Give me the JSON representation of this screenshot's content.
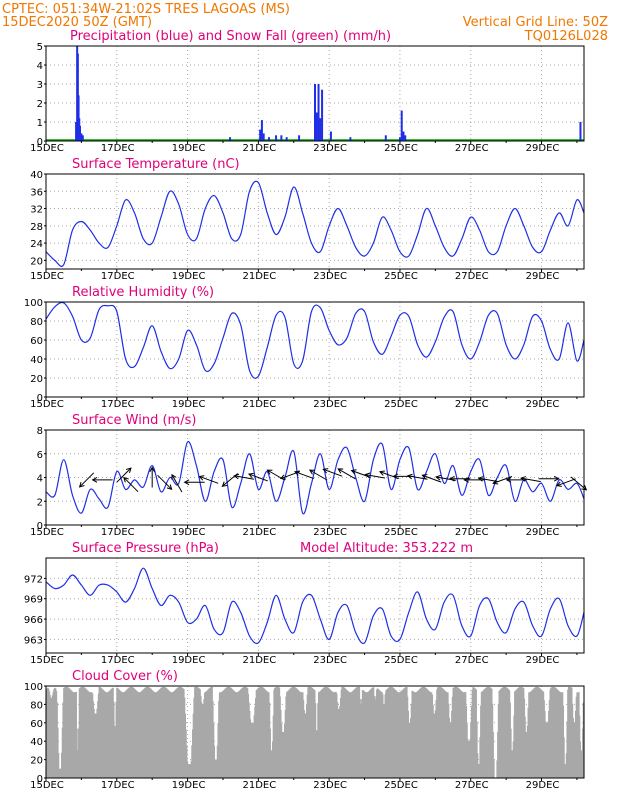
{
  "header": {
    "line1": "CPTEC:  051:34W-21:02S  TRES LAGOAS (MS)",
    "line2": "15DEC2020 50Z (GMT)",
    "right1": "Vertical Grid Line: 50Z",
    "right2": "TQ0126L028"
  },
  "colors": {
    "header": "#f07800",
    "title": "#e0007a",
    "series": "#1f2fe6",
    "snow": "#00a000",
    "cloud": "#a8a8a8",
    "grid": "#aaaaaa"
  },
  "x_tick_labels": [
    "15DEC",
    "17DEC",
    "19DEC",
    "21DEC",
    "23DEC",
    "25DEC",
    "27DEC",
    "29DEC"
  ],
  "x_tick_days": [
    0,
    2,
    4,
    6,
    8,
    10,
    12,
    14
  ],
  "x_range_days": [
    0,
    15.2
  ],
  "chart_data": [
    {
      "type": "bar",
      "id": "precip",
      "title": "Precipitation (blue) and Snow Fall (green) (mm/h)",
      "ylim": [
        0,
        5
      ],
      "yticks": [
        0,
        1,
        2,
        3,
        4,
        5
      ],
      "bars": [
        [
          0.85,
          1.0
        ],
        [
          0.88,
          5.0
        ],
        [
          0.9,
          4.6
        ],
        [
          0.92,
          2.4
        ],
        [
          0.94,
          1.2
        ],
        [
          0.96,
          0.8
        ],
        [
          1.0,
          0.4
        ],
        [
          1.04,
          0.3
        ],
        [
          5.2,
          0.2
        ],
        [
          6.05,
          0.6
        ],
        [
          6.1,
          1.1
        ],
        [
          6.15,
          0.4
        ],
        [
          6.3,
          0.2
        ],
        [
          6.5,
          0.3
        ],
        [
          6.65,
          0.3
        ],
        [
          6.8,
          0.2
        ],
        [
          7.15,
          0.3
        ],
        [
          7.6,
          3.0
        ],
        [
          7.65,
          1.5
        ],
        [
          7.7,
          3.0
        ],
        [
          7.75,
          1.2
        ],
        [
          7.8,
          2.7
        ],
        [
          8.05,
          0.5
        ],
        [
          8.6,
          0.2
        ],
        [
          9.6,
          0.3
        ],
        [
          10.0,
          0.2
        ],
        [
          10.05,
          1.6
        ],
        [
          10.1,
          0.5
        ],
        [
          10.15,
          0.3
        ],
        [
          15.1,
          1.0
        ]
      ],
      "snow_values": "zero"
    },
    {
      "type": "line",
      "id": "temperature",
      "title": "Surface Temperature (nC)",
      "ylim": [
        18,
        40
      ],
      "yticks": [
        20,
        24,
        28,
        32,
        36,
        40
      ],
      "x": [
        0,
        0.25,
        0.5,
        0.75,
        1.0,
        1.25,
        1.5,
        1.75,
        2.0,
        2.25,
        2.5,
        2.75,
        3.0,
        3.25,
        3.5,
        3.75,
        4.0,
        4.25,
        4.5,
        4.75,
        5.0,
        5.25,
        5.5,
        5.75,
        6.0,
        6.25,
        6.5,
        6.75,
        7.0,
        7.25,
        7.5,
        7.75,
        8.0,
        8.25,
        8.5,
        8.75,
        9.0,
        9.25,
        9.5,
        9.75,
        10.0,
        10.25,
        10.5,
        10.75,
        11.0,
        11.25,
        11.5,
        11.75,
        12.0,
        12.25,
        12.5,
        12.75,
        13.0,
        13.25,
        13.5,
        13.75,
        14.0,
        14.25,
        14.5,
        14.75,
        15.0,
        15.2
      ],
      "y": [
        22,
        20,
        19,
        27,
        29,
        27,
        24,
        23,
        28,
        34,
        31,
        25,
        24,
        30,
        36,
        33,
        26,
        25,
        32,
        35,
        31,
        25,
        26,
        36,
        38,
        31,
        26,
        30,
        37,
        31,
        24,
        22,
        28,
        32,
        28,
        23,
        21,
        24,
        30,
        27,
        22,
        21,
        26,
        32,
        28,
        23,
        21,
        25,
        30,
        27,
        22,
        22,
        28,
        32,
        28,
        23,
        22,
        27,
        31,
        28,
        34,
        31
      ]
    },
    {
      "type": "line",
      "id": "humidity",
      "title": "Relative Humidity (%)",
      "ylim": [
        0,
        100
      ],
      "yticks": [
        0,
        20,
        40,
        60,
        80,
        100
      ],
      "x": [
        0,
        0.25,
        0.5,
        0.75,
        1.0,
        1.25,
        1.5,
        1.75,
        2.0,
        2.25,
        2.5,
        2.75,
        3.0,
        3.25,
        3.5,
        3.75,
        4.0,
        4.25,
        4.5,
        4.75,
        5.0,
        5.25,
        5.5,
        5.75,
        6.0,
        6.25,
        6.5,
        6.75,
        7.0,
        7.25,
        7.5,
        7.75,
        8.0,
        8.25,
        8.5,
        8.75,
        9.0,
        9.25,
        9.5,
        9.75,
        10.0,
        10.25,
        10.5,
        10.75,
        11.0,
        11.25,
        11.5,
        11.75,
        12.0,
        12.25,
        12.5,
        12.75,
        13.0,
        13.25,
        13.5,
        13.75,
        14.0,
        14.25,
        14.5,
        14.75,
        15.0,
        15.2
      ],
      "y": [
        82,
        95,
        99,
        85,
        60,
        62,
        92,
        96,
        90,
        40,
        32,
        52,
        75,
        48,
        30,
        40,
        70,
        55,
        28,
        35,
        62,
        88,
        76,
        28,
        22,
        52,
        86,
        84,
        35,
        38,
        90,
        94,
        70,
        55,
        62,
        88,
        90,
        58,
        45,
        64,
        86,
        85,
        55,
        42,
        58,
        84,
        90,
        55,
        40,
        58,
        86,
        88,
        55,
        40,
        55,
        85,
        80,
        50,
        40,
        78,
        38,
        60
      ]
    },
    {
      "type": "line",
      "id": "wind",
      "title": "Surface Wind (m/s)",
      "ylim": [
        0,
        8
      ],
      "yticks": [
        0,
        2,
        4,
        6,
        8
      ],
      "x": [
        0,
        0.25,
        0.5,
        0.75,
        1.0,
        1.25,
        1.5,
        1.75,
        2.0,
        2.25,
        2.5,
        2.75,
        3.0,
        3.25,
        3.5,
        3.75,
        4.0,
        4.25,
        4.5,
        4.75,
        5.0,
        5.25,
        5.5,
        5.75,
        6.0,
        6.25,
        6.5,
        6.75,
        7.0,
        7.25,
        7.5,
        7.75,
        8.0,
        8.25,
        8.5,
        8.75,
        9.0,
        9.25,
        9.5,
        9.75,
        10.0,
        10.25,
        10.5,
        10.75,
        11.0,
        11.25,
        11.5,
        11.75,
        12.0,
        12.25,
        12.5,
        12.75,
        13.0,
        13.25,
        13.5,
        13.75,
        14.0,
        14.25,
        14.5,
        14.75,
        15.0,
        15.2
      ],
      "y": [
        2.8,
        2.5,
        5.5,
        2.5,
        1.0,
        3.0,
        2.2,
        1.5,
        4.5,
        3.0,
        3.8,
        3.2,
        5.0,
        2.8,
        4.0,
        3.5,
        7.0,
        5.0,
        2.0,
        4.5,
        5.5,
        1.5,
        3.5,
        6.0,
        3.0,
        4.5,
        2.0,
        4.0,
        6.2,
        1.0,
        3.5,
        6.0,
        3.0,
        5.5,
        6.5,
        4.0,
        2.0,
        5.5,
        6.8,
        3.0,
        5.5,
        6.5,
        3.0,
        4.5,
        6.0,
        3.5,
        5.0,
        2.5,
        4.5,
        5.5,
        2.5,
        4.0,
        5.0,
        2.0,
        3.8,
        2.8,
        3.5,
        2.0,
        3.8,
        3.0,
        3.5,
        2.2
      ],
      "arrows": [
        [
          1.15,
          3.8,
          225
        ],
        [
          1.6,
          3.8,
          180
        ],
        [
          2.2,
          4.2,
          45
        ],
        [
          2.4,
          3.4,
          135
        ],
        [
          3.0,
          4.0,
          90
        ],
        [
          3.35,
          3.6,
          315
        ],
        [
          3.7,
          3.5,
          120
        ],
        [
          4.2,
          3.6,
          180
        ],
        [
          4.6,
          3.8,
          160
        ],
        [
          5.2,
          3.8,
          220
        ],
        [
          5.6,
          4.0,
          170
        ],
        [
          6.0,
          4.0,
          160
        ],
        [
          6.5,
          4.2,
          150
        ],
        [
          6.9,
          4.2,
          200
        ],
        [
          7.3,
          4.2,
          160
        ],
        [
          7.7,
          4.2,
          150
        ],
        [
          8.1,
          4.4,
          160
        ],
        [
          8.5,
          4.3,
          150
        ],
        [
          8.9,
          4.3,
          160
        ],
        [
          9.3,
          4.1,
          170
        ],
        [
          9.7,
          4.2,
          160
        ],
        [
          10.1,
          4.1,
          180
        ],
        [
          10.5,
          4.0,
          170
        ],
        [
          10.9,
          3.9,
          160
        ],
        [
          11.3,
          3.9,
          170
        ],
        [
          11.7,
          3.9,
          180
        ],
        [
          12.1,
          3.8,
          180
        ],
        [
          12.5,
          3.8,
          170
        ],
        [
          12.9,
          3.8,
          200
        ],
        [
          13.3,
          3.8,
          180
        ],
        [
          13.7,
          3.8,
          170
        ],
        [
          14.2,
          3.9,
          0
        ],
        [
          14.7,
          3.6,
          200
        ],
        [
          15.05,
          3.5,
          320
        ]
      ]
    },
    {
      "type": "line",
      "id": "pressure",
      "title": "Surface Pressure (hPa)",
      "subtitle": "Model Altitude: 353.222 m",
      "ylim": [
        961,
        975
      ],
      "yticks": [
        963,
        966,
        969,
        972
      ],
      "x": [
        0,
        0.25,
        0.5,
        0.75,
        1.0,
        1.25,
        1.5,
        1.75,
        2.0,
        2.25,
        2.5,
        2.75,
        3.0,
        3.25,
        3.5,
        3.75,
        4.0,
        4.25,
        4.5,
        4.75,
        5.0,
        5.25,
        5.5,
        5.75,
        6.0,
        6.25,
        6.5,
        6.75,
        7.0,
        7.25,
        7.5,
        7.75,
        8.0,
        8.25,
        8.5,
        8.75,
        9.0,
        9.25,
        9.5,
        9.75,
        10.0,
        10.25,
        10.5,
        10.75,
        11.0,
        11.25,
        11.5,
        11.75,
        12.0,
        12.25,
        12.5,
        12.75,
        13.0,
        13.25,
        13.5,
        13.75,
        14.0,
        14.25,
        14.5,
        14.75,
        15.0,
        15.2
      ],
      "y": [
        971.5,
        970.5,
        971.0,
        972.5,
        971.0,
        969.5,
        971.0,
        971.0,
        970.0,
        968.5,
        970.5,
        973.5,
        970.5,
        968.0,
        969.5,
        968.5,
        965.5,
        966.0,
        968.0,
        964.5,
        964.0,
        968.5,
        967.0,
        963.5,
        962.5,
        965.5,
        969.5,
        966.0,
        964.0,
        968.5,
        969.5,
        966.0,
        963.0,
        967.0,
        968.0,
        964.0,
        962.5,
        966.5,
        967.5,
        963.5,
        963.0,
        967.0,
        970.0,
        966.0,
        964.5,
        968.5,
        969.5,
        965.0,
        963.5,
        968.0,
        969.0,
        965.5,
        964.0,
        967.5,
        968.5,
        965.0,
        963.5,
        967.5,
        969.0,
        965.0,
        963.5,
        967.0
      ]
    },
    {
      "type": "bar",
      "id": "cloud",
      "title": "Cloud Cover (%)",
      "ylim": [
        0,
        100
      ],
      "yticks": [
        0,
        20,
        40,
        60,
        80,
        100
      ],
      "dips": [
        [
          0.3,
          0.5,
          10
        ],
        [
          0.85,
          0.95,
          30
        ],
        [
          1.3,
          1.5,
          70
        ],
        [
          1.9,
          2.0,
          55
        ],
        [
          3.9,
          4.2,
          15
        ],
        [
          4.35,
          4.5,
          80
        ],
        [
          4.7,
          4.9,
          20
        ],
        [
          5.7,
          5.95,
          60
        ],
        [
          6.3,
          6.45,
          30
        ],
        [
          6.6,
          6.8,
          50
        ],
        [
          7.25,
          7.4,
          70
        ],
        [
          7.6,
          7.7,
          50
        ],
        [
          8.2,
          8.35,
          75
        ],
        [
          8.85,
          8.95,
          80
        ],
        [
          9.25,
          9.35,
          85
        ],
        [
          9.5,
          9.6,
          80
        ],
        [
          10.2,
          10.35,
          60
        ],
        [
          10.9,
          11.05,
          70
        ],
        [
          11.35,
          11.5,
          60
        ],
        [
          11.85,
          12.05,
          40
        ],
        [
          12.15,
          12.3,
          15
        ],
        [
          12.6,
          12.8,
          0
        ],
        [
          13.1,
          13.25,
          30
        ],
        [
          13.5,
          13.65,
          50
        ],
        [
          14.05,
          14.25,
          60
        ],
        [
          14.6,
          14.75,
          15
        ],
        [
          14.85,
          15.0,
          60
        ],
        [
          15.05,
          15.2,
          30
        ]
      ]
    }
  ]
}
